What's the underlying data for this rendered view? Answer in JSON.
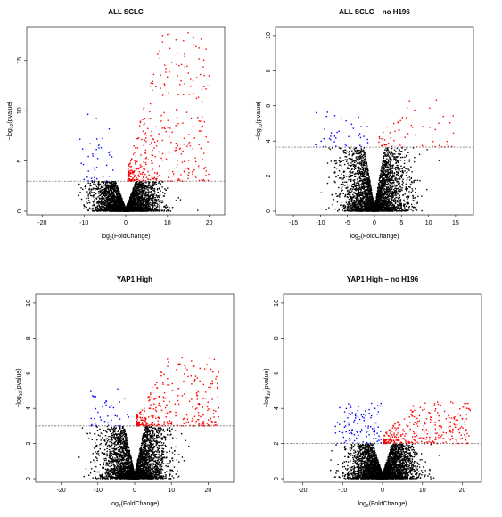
{
  "chart_data": [
    {
      "type": "scatter",
      "title": "ALL SCLC",
      "xlabel": {
        "pre": "log",
        "sub": "2",
        "post": "(FoldChange)"
      },
      "ylabel": {
        "pre": "−log",
        "sub": "10",
        "post": "(pvalue)"
      },
      "xlim": [
        -22,
        22
      ],
      "ylim": [
        0,
        18
      ],
      "xticks": [
        -20,
        -10,
        0,
        10,
        20
      ],
      "yticks": [
        0,
        5,
        10,
        15
      ],
      "threshold": 3.0,
      "seed": 11,
      "n_black": 3200,
      "red": {
        "n": 380,
        "xmin": 0.5,
        "xmax": 20,
        "ymax": 17.8
      },
      "blue": {
        "n": 40,
        "xmin": -11,
        "xmax": -3,
        "ymax": 9.8
      }
    },
    {
      "type": "scatter",
      "title": "ALL SCLC − no H196",
      "xlabel": {
        "pre": "log",
        "sub": "2",
        "post": "(FoldChange)"
      },
      "ylabel": {
        "pre": "−log",
        "sub": "10",
        "post": "(pvalue)"
      },
      "xlim": [
        -17,
        17
      ],
      "ylim": [
        0,
        10.3
      ],
      "xticks": [
        -15,
        -10,
        -5,
        0,
        5,
        10,
        15
      ],
      "yticks": [
        0,
        2,
        4,
        6,
        8,
        10
      ],
      "threshold": 3.65,
      "seed": 23,
      "n_black": 3200,
      "red": {
        "n": 60,
        "xmin": 0.8,
        "xmax": 16,
        "ymax": 6.5
      },
      "blue": {
        "n": 40,
        "xmin": -11,
        "xmax": -1.2,
        "ymax": 5.7
      }
    },
    {
      "type": "scatter",
      "title": "YAP1 High",
      "xlabel": {
        "pre": "log",
        "sub": "2",
        "post": "(FoldChange)"
      },
      "ylabel": {
        "pre": "−log",
        "sub": "10",
        "post": "(pvalue)"
      },
      "xlim": [
        -25,
        25
      ],
      "ylim": [
        0,
        10.3
      ],
      "xticks": [
        -20,
        -10,
        0,
        10,
        20
      ],
      "yticks": [
        0,
        2,
        4,
        6,
        8,
        10
      ],
      "threshold": 3.0,
      "seed": 37,
      "n_black": 3200,
      "red": {
        "n": 320,
        "xmin": 0.5,
        "xmax": 23,
        "ymax": 7.0
      },
      "blue": {
        "n": 40,
        "xmin": -12,
        "xmax": -1.5,
        "ymax": 5.2
      }
    },
    {
      "type": "scatter",
      "title": "YAP1 High − no H196",
      "xlabel": {
        "pre": "log",
        "sub": "2",
        "post": "(FoldChange)"
      },
      "ylabel": {
        "pre": "−log",
        "sub": "10",
        "post": "(pvalue)"
      },
      "xlim": [
        -23,
        23
      ],
      "ylim": [
        0,
        10.3
      ],
      "xticks": [
        -20,
        -10,
        0,
        10,
        20
      ],
      "yticks": [
        0,
        2,
        4,
        6,
        8,
        10
      ],
      "threshold": 2.0,
      "seed": 51,
      "n_black": 3400,
      "red": {
        "n": 320,
        "xmin": 0.3,
        "xmax": 22,
        "ymax": 4.4
      },
      "blue": {
        "n": 110,
        "xmin": -12,
        "xmax": -0.3,
        "ymax": 4.3
      }
    }
  ]
}
